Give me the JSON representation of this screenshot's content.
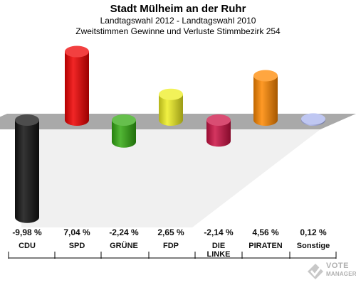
{
  "chart_data": {
    "type": "bar",
    "title": "Stadt Mülheim an der Ruhr",
    "subtitle_1": "Landtagswahl 2012 - Landtagswahl 2010",
    "subtitle_2": "Zweitstimmen Gewinne und Verluste Stimmbezirk 254",
    "categories": [
      "CDU",
      "SPD",
      "GRÜNE",
      "FDP",
      "DIE LINKE",
      "PIRATEN",
      "Sonstige"
    ],
    "values": [
      -9.98,
      7.04,
      -2.24,
      2.65,
      -2.14,
      4.56,
      0.12
    ],
    "value_labels": [
      "-9,98 %",
      "7,04 %",
      "-2,24 %",
      "2,65 %",
      "-2,14 %",
      "4,56 %",
      "0,12 %"
    ],
    "colors": [
      "#111111",
      "#ee0000",
      "#33aa11",
      "#eeee22",
      "#cc1144",
      "#ff8800",
      "#aab4ee"
    ],
    "ylim": [
      -10.5,
      8.0
    ],
    "grid": false
  },
  "logo": {
    "line1": "VOTE",
    "line2": "MANAGER"
  }
}
